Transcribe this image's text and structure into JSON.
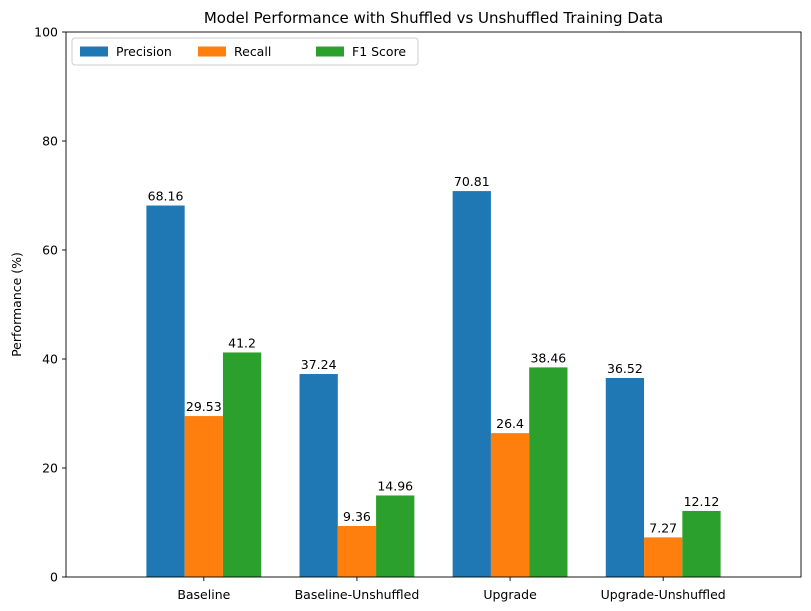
{
  "chart_data": {
    "type": "bar",
    "title": "Model Performance with Shuffled vs Unshuffled Training Data",
    "xlabel": "",
    "ylabel": "Performance (%)",
    "ylim": [
      0,
      100
    ],
    "yticks": [
      0,
      20,
      40,
      60,
      80,
      100
    ],
    "categories": [
      "Baseline",
      "Baseline-Unshuffled",
      "Upgrade",
      "Upgrade-Unshuffled"
    ],
    "series": [
      {
        "name": "Precision",
        "color": "#1f77b4",
        "values": [
          68.16,
          37.24,
          70.81,
          36.52
        ]
      },
      {
        "name": "Recall",
        "color": "#ff7f0e",
        "values": [
          29.53,
          9.36,
          26.4,
          7.27
        ]
      },
      {
        "name": "F1 Score",
        "color": "#2ca02c",
        "values": [
          41.2,
          14.96,
          38.46,
          12.12
        ]
      }
    ],
    "legend": {
      "position": "top-left",
      "columns": 3
    },
    "grid": false
  }
}
